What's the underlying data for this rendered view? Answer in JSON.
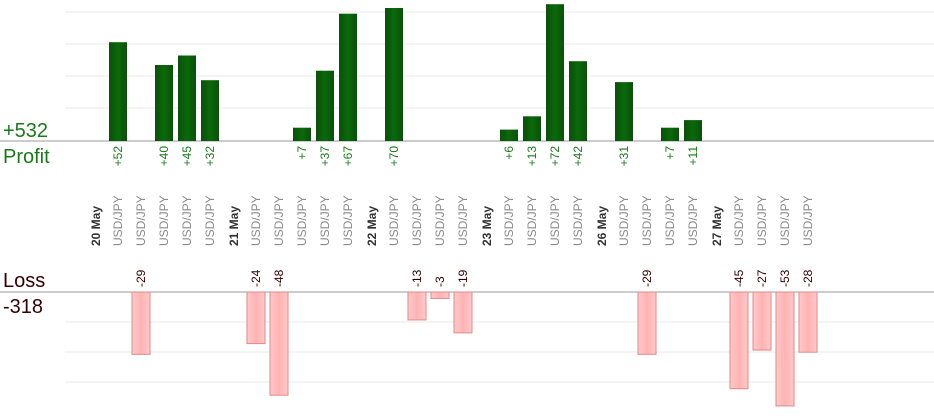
{
  "summary": {
    "profit_total": "+532",
    "profit_label": "Profit",
    "loss_label": "Loss",
    "loss_total": "-318"
  },
  "colors": {
    "profit": "#0a6a0a",
    "profit_text": "#1a7a1a",
    "loss_fill": "#ffb3b3",
    "loss_stroke": "#e08a8a",
    "loss_text": "#330000",
    "axis": "#999999"
  },
  "chart_data": {
    "type": "bar",
    "groups": [
      {
        "date": "20 May",
        "trades": [
          {
            "pair": "USD/JPY",
            "value": 52
          },
          {
            "pair": "USD/JPY",
            "value": -29
          },
          {
            "pair": "USD/JPY",
            "value": 40
          },
          {
            "pair": "USD/JPY",
            "value": 45
          },
          {
            "pair": "USD/JPY",
            "value": 32
          }
        ]
      },
      {
        "date": "21 May",
        "trades": [
          {
            "pair": "USD/JPY",
            "value": -24
          },
          {
            "pair": "USD/JPY",
            "value": -48
          },
          {
            "pair": "USD/JPY",
            "value": 7
          },
          {
            "pair": "USD/JPY",
            "value": 37
          },
          {
            "pair": "USD/JPY",
            "value": 67
          }
        ]
      },
      {
        "date": "22 May",
        "trades": [
          {
            "pair": "USD/JPY",
            "value": 70
          },
          {
            "pair": "USD/JPY",
            "value": -13
          },
          {
            "pair": "USD/JPY",
            "value": -3
          },
          {
            "pair": "USD/JPY",
            "value": -19
          }
        ]
      },
      {
        "date": "23 May",
        "trades": [
          {
            "pair": "USD/JPY",
            "value": 6
          },
          {
            "pair": "USD/JPY",
            "value": 13
          },
          {
            "pair": "USD/JPY",
            "value": 72
          },
          {
            "pair": "USD/JPY",
            "value": 42
          }
        ]
      },
      {
        "date": "26 May",
        "trades": [
          {
            "pair": "USD/JPY",
            "value": 31
          },
          {
            "pair": "USD/JPY",
            "value": -29
          },
          {
            "pair": "USD/JPY",
            "value": 7
          },
          {
            "pair": "USD/JPY",
            "value": 11
          }
        ]
      },
      {
        "date": "27 May",
        "trades": [
          {
            "pair": "USD/JPY",
            "value": -45
          },
          {
            "pair": "USD/JPY",
            "value": -27
          },
          {
            "pair": "USD/JPY",
            "value": -53
          },
          {
            "pair": "USD/JPY",
            "value": -28
          }
        ]
      }
    ]
  }
}
